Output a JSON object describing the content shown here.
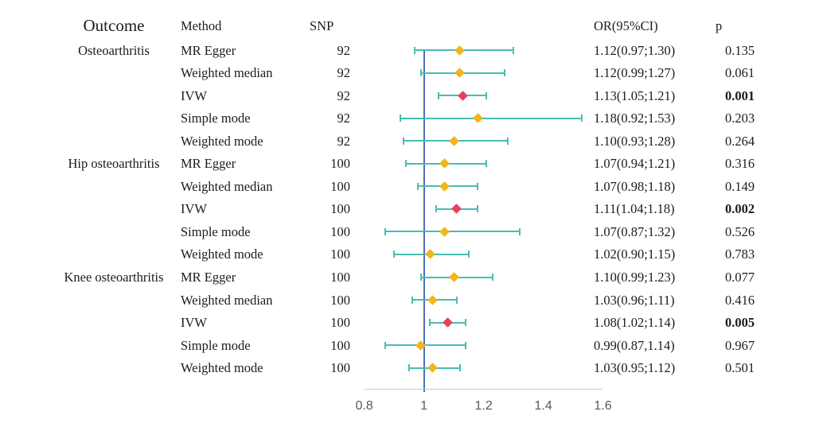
{
  "headers": {
    "outcome": "Outcome",
    "method": "Method",
    "snp": "SNP",
    "or_ci": "OR(95%CI)",
    "p": "p"
  },
  "colors": {
    "marker_default": "#f0b71d",
    "marker_ivw": "#e8415e",
    "error_bar": "#48bdb2",
    "reference_line": "#4b6fbc",
    "axis_line": "#c9c9c9",
    "tick_text": "#595959",
    "text": "#1c1c1c"
  },
  "chart_data": {
    "type": "forest",
    "x_axis": {
      "min": 0.75,
      "max": 1.66,
      "tick_labels": [
        "0.8",
        "1",
        "1.2",
        "1.4",
        "1.6"
      ],
      "tick_values": [
        0.8,
        1,
        1.2,
        1.4,
        1.6
      ],
      "reference_value": 1
    },
    "columns": [
      "Outcome",
      "Method",
      "SNP",
      "OR(95%CI)",
      "p"
    ],
    "rows": [
      {
        "outcome": "Osteoarthritis",
        "method": "MR Egger",
        "snp": "92",
        "or": 1.12,
        "ci_low": 0.97,
        "ci_high": 1.3,
        "or_ci": "1.12(0.97;1.30)",
        "p": "0.135",
        "p_bold": false,
        "ivw": false
      },
      {
        "outcome": "",
        "method": "Weighted median",
        "snp": "92",
        "or": 1.12,
        "ci_low": 0.99,
        "ci_high": 1.27,
        "or_ci": "1.12(0.99;1.27)",
        "p": "0.061",
        "p_bold": false,
        "ivw": false
      },
      {
        "outcome": "",
        "method": "IVW",
        "snp": "92",
        "or": 1.13,
        "ci_low": 1.05,
        "ci_high": 1.21,
        "or_ci": "1.13(1.05;1.21)",
        "p": "0.001",
        "p_bold": true,
        "ivw": true
      },
      {
        "outcome": "",
        "method": "Simple mode",
        "snp": "92",
        "or": 1.18,
        "ci_low": 0.92,
        "ci_high": 1.53,
        "or_ci": "1.18(0.92;1.53)",
        "p": "0.203",
        "p_bold": false,
        "ivw": false
      },
      {
        "outcome": "",
        "method": "Weighted mode",
        "snp": "92",
        "or": 1.1,
        "ci_low": 0.93,
        "ci_high": 1.28,
        "or_ci": "1.10(0.93;1.28)",
        "p": "0.264",
        "p_bold": false,
        "ivw": false
      },
      {
        "outcome": "Hip osteoarthritis",
        "method": "MR Egger",
        "snp": "100",
        "or": 1.07,
        "ci_low": 0.94,
        "ci_high": 1.21,
        "or_ci": "1.07(0.94;1.21)",
        "p": "0.316",
        "p_bold": false,
        "ivw": false
      },
      {
        "outcome": "",
        "method": "Weighted median",
        "snp": "100",
        "or": 1.07,
        "ci_low": 0.98,
        "ci_high": 1.18,
        "or_ci": "1.07(0.98;1.18)",
        "p": "0.149",
        "p_bold": false,
        "ivw": false
      },
      {
        "outcome": "",
        "method": "IVW",
        "snp": "100",
        "or": 1.11,
        "ci_low": 1.04,
        "ci_high": 1.18,
        "or_ci": "1.11(1.04;1.18)",
        "p": "0.002",
        "p_bold": true,
        "ivw": true
      },
      {
        "outcome": "",
        "method": "Simple mode",
        "snp": "100",
        "or": 1.07,
        "ci_low": 0.87,
        "ci_high": 1.32,
        "or_ci": "1.07(0.87;1.32)",
        "p": "0.526",
        "p_bold": false,
        "ivw": false
      },
      {
        "outcome": "",
        "method": "Weighted mode",
        "snp": "100",
        "or": 1.02,
        "ci_low": 0.9,
        "ci_high": 1.15,
        "or_ci": "1.02(0.90;1.15)",
        "p": "0.783",
        "p_bold": false,
        "ivw": false
      },
      {
        "outcome": "Knee osteoarthritis",
        "method": "MR Egger",
        "snp": "100",
        "or": 1.1,
        "ci_low": 0.99,
        "ci_high": 1.23,
        "or_ci": "1.10(0.99;1.23)",
        "p": "0.077",
        "p_bold": false,
        "ivw": false
      },
      {
        "outcome": "",
        "method": "Weighted median",
        "snp": "100",
        "or": 1.03,
        "ci_low": 0.96,
        "ci_high": 1.11,
        "or_ci": "1.03(0.96;1.11)",
        "p": "0.416",
        "p_bold": false,
        "ivw": false
      },
      {
        "outcome": "",
        "method": "IVW",
        "snp": "100",
        "or": 1.08,
        "ci_low": 1.02,
        "ci_high": 1.14,
        "or_ci": "1.08(1.02;1.14)",
        "p": "0.005",
        "p_bold": true,
        "ivw": true
      },
      {
        "outcome": "",
        "method": "Simple mode",
        "snp": "100",
        "or": 0.99,
        "ci_low": 0.87,
        "ci_high": 1.14,
        "or_ci": "0.99(0.87,1.14)",
        "p": "0.967",
        "p_bold": false,
        "ivw": false
      },
      {
        "outcome": "",
        "method": "Weighted mode",
        "snp": "100",
        "or": 1.03,
        "ci_low": 0.95,
        "ci_high": 1.12,
        "or_ci": "1.03(0.95;1.12)",
        "p": "0.501",
        "p_bold": false,
        "ivw": false
      }
    ]
  }
}
